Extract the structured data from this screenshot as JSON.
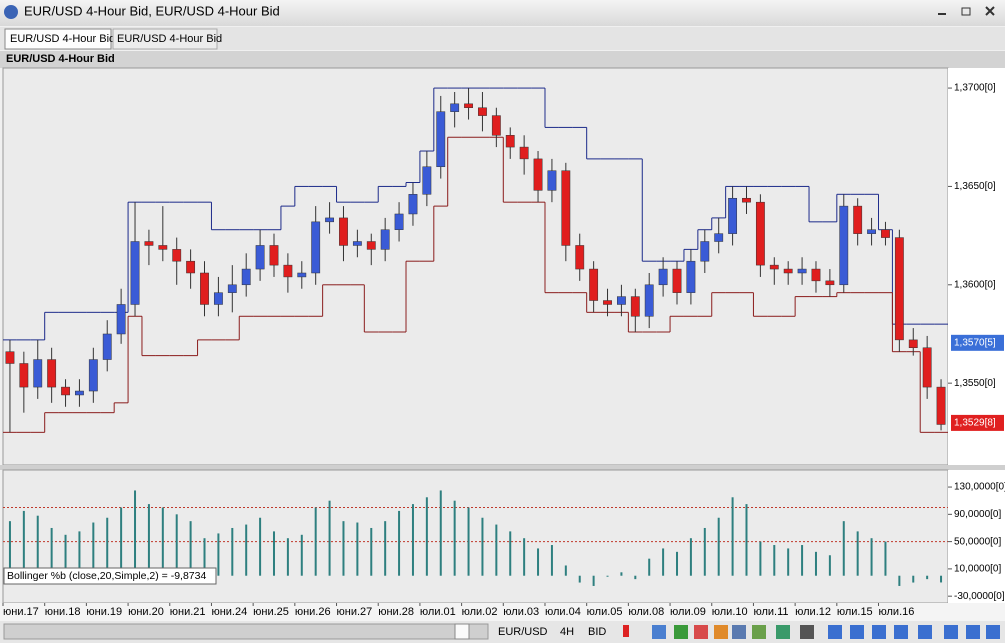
{
  "window": {
    "title": "EUR/USD 4-Hour Bid, EUR/USD 4-Hour Bid",
    "tabs": [
      "EUR/USD 4-Hour Bid",
      "EUR/USD 4-Hour Bid"
    ],
    "panel_title": "EUR/USD 4-Hour Bid",
    "toolbar": {
      "symbol": "EUR/USD",
      "period": "4H",
      "side": "BID"
    }
  },
  "chart_data": [
    {
      "type": "candlestick",
      "categories": [
        null,
        "юни.17",
        null,
        null,
        "юни.18",
        null,
        null,
        "юни.19",
        null,
        null,
        "юни.20",
        null,
        null,
        "юни.21",
        null,
        null,
        "юни.24",
        null,
        null,
        "юни.25",
        null,
        null,
        "юни.26",
        null,
        null,
        "юни.27",
        null,
        null,
        "юни.28",
        null,
        null,
        "юли.01",
        null,
        null,
        "юли.02",
        null,
        null,
        "юли.03",
        null,
        null,
        "юли.04",
        null,
        null,
        "юли.05",
        null,
        null,
        "юли.08",
        null,
        null,
        "юли.09",
        null,
        null,
        "юли.10",
        null,
        null,
        "юли.11",
        null,
        null,
        "юли.12",
        null,
        null,
        "юли.15",
        null,
        null,
        "юли.16",
        null,
        null,
        null
      ],
      "open": [
        1.3566,
        1.356,
        1.3548,
        1.3562,
        1.3548,
        1.3544,
        1.3546,
        1.3562,
        1.3575,
        1.359,
        1.3622,
        1.362,
        1.3618,
        1.3612,
        1.3606,
        1.359,
        1.3596,
        1.36,
        1.3608,
        1.362,
        1.361,
        1.3604,
        1.3606,
        1.3632,
        1.3634,
        1.362,
        1.3622,
        1.3618,
        1.3628,
        1.3636,
        1.3646,
        1.366,
        1.3688,
        1.3692,
        1.369,
        1.3686,
        1.3676,
        1.367,
        1.3664,
        1.3648,
        1.3658,
        1.362,
        1.3608,
        1.3592,
        1.359,
        1.3594,
        1.3584,
        1.36,
        1.3608,
        1.3596,
        1.3612,
        1.3622,
        1.3626,
        1.3644,
        1.3642,
        1.361,
        1.3608,
        1.3606,
        1.3608,
        1.3602,
        1.36,
        1.364,
        1.3626,
        1.3628,
        1.3624,
        1.3572,
        1.3568,
        1.3548
      ],
      "high": [
        1.3572,
        1.3566,
        1.3572,
        1.3568,
        1.3552,
        1.3552,
        1.3568,
        1.3582,
        1.3598,
        1.3642,
        1.3628,
        1.364,
        1.3624,
        1.3618,
        1.3612,
        1.3604,
        1.361,
        1.3616,
        1.3628,
        1.3626,
        1.3616,
        1.3612,
        1.364,
        1.3642,
        1.364,
        1.3628,
        1.3626,
        1.3634,
        1.3642,
        1.3652,
        1.3668,
        1.3696,
        1.3698,
        1.37,
        1.3698,
        1.369,
        1.368,
        1.3676,
        1.3668,
        1.3664,
        1.3662,
        1.3626,
        1.3612,
        1.3598,
        1.36,
        1.3598,
        1.3606,
        1.3614,
        1.3612,
        1.3618,
        1.3628,
        1.3634,
        1.365,
        1.365,
        1.3646,
        1.3614,
        1.3612,
        1.3614,
        1.3612,
        1.3608,
        1.3646,
        1.3644,
        1.3634,
        1.3632,
        1.3628,
        1.3578,
        1.3574,
        1.3552
      ],
      "low": [
        1.3525,
        1.3535,
        1.3542,
        1.354,
        1.3538,
        1.3538,
        1.354,
        1.3556,
        1.357,
        1.3584,
        1.361,
        1.3612,
        1.36,
        1.3598,
        1.3584,
        1.3584,
        1.3586,
        1.3594,
        1.3602,
        1.3604,
        1.3596,
        1.3598,
        1.36,
        1.3626,
        1.3612,
        1.3614,
        1.361,
        1.3612,
        1.3622,
        1.363,
        1.364,
        1.3654,
        1.368,
        1.3684,
        1.3678,
        1.367,
        1.3664,
        1.3656,
        1.3642,
        1.3642,
        1.3612,
        1.3602,
        1.3586,
        1.3584,
        1.3584,
        1.3576,
        1.3578,
        1.3594,
        1.359,
        1.359,
        1.3606,
        1.3616,
        1.362,
        1.3636,
        1.3604,
        1.36,
        1.36,
        1.36,
        1.3596,
        1.3594,
        1.3596,
        1.362,
        1.362,
        1.362,
        1.3566,
        1.3564,
        1.3542,
        1.3526
      ],
      "close": [
        1.356,
        1.3548,
        1.3562,
        1.3548,
        1.3544,
        1.3546,
        1.3562,
        1.3575,
        1.359,
        1.3622,
        1.362,
        1.3618,
        1.3612,
        1.3606,
        1.359,
        1.3596,
        1.36,
        1.3608,
        1.362,
        1.361,
        1.3604,
        1.3606,
        1.3632,
        1.3634,
        1.362,
        1.3622,
        1.3618,
        1.3628,
        1.3636,
        1.3646,
        1.366,
        1.3688,
        1.3692,
        1.369,
        1.3686,
        1.3676,
        1.367,
        1.3664,
        1.3648,
        1.3658,
        1.362,
        1.3608,
        1.3592,
        1.359,
        1.3594,
        1.3584,
        1.36,
        1.3608,
        1.3596,
        1.3612,
        1.3622,
        1.3626,
        1.3644,
        1.3642,
        1.361,
        1.3608,
        1.3606,
        1.3608,
        1.3602,
        1.36,
        1.364,
        1.3626,
        1.3628,
        1.3624,
        1.3572,
        1.3568,
        1.3548,
        1.3529
      ],
      "up_color": "#3a5bd6",
      "down_color": "#e01e1e",
      "series": [
        {
          "color": "#1c2a8a",
          "values": [
            1.3572,
            1.3572,
            1.3572,
            1.3586,
            1.3586,
            1.3586,
            1.3586,
            1.3586,
            1.3586,
            1.3642,
            1.3642,
            1.3642,
            1.3642,
            1.3642,
            1.3642,
            1.3628,
            1.3628,
            1.3628,
            1.3628,
            1.3628,
            1.364,
            1.365,
            1.365,
            1.365,
            1.3642,
            1.3642,
            1.3642,
            1.365,
            1.365,
            1.3652,
            1.3668,
            1.37,
            1.37,
            1.37,
            1.37,
            1.37,
            1.37,
            1.37,
            1.37,
            1.368,
            1.368,
            1.368,
            1.3664,
            1.3664,
            1.3664,
            1.3664,
            1.3612,
            1.3612,
            1.3612,
            1.3618,
            1.3628,
            1.3634,
            1.365,
            1.365,
            1.365,
            1.365,
            1.365,
            1.365,
            1.3632,
            1.3632,
            1.3646,
            1.3646,
            1.3646,
            1.3628,
            1.358,
            1.358,
            1.358,
            1.358
          ]
        },
        {
          "color": "#8a1c1c",
          "values": [
            1.3525,
            1.3525,
            1.3525,
            1.3535,
            1.3535,
            1.3535,
            1.3535,
            1.3535,
            1.354,
            1.3584,
            1.3564,
            1.3564,
            1.3564,
            1.3564,
            1.3572,
            1.3572,
            1.3572,
            1.3584,
            1.3584,
            1.3584,
            1.3584,
            1.3584,
            1.3584,
            1.36,
            1.36,
            1.36,
            1.3576,
            1.3576,
            1.3576,
            1.3612,
            1.3612,
            1.364,
            1.3675,
            1.3675,
            1.3675,
            1.3675,
            1.3642,
            1.3642,
            1.3642,
            1.3596,
            1.3596,
            1.3596,
            1.3586,
            1.3586,
            1.3586,
            1.3576,
            1.3576,
            1.3576,
            1.3584,
            1.3584,
            1.3584,
            1.3596,
            1.3596,
            1.3596,
            1.3584,
            1.3584,
            1.3584,
            1.3594,
            1.3594,
            1.3594,
            1.3596,
            1.3596,
            1.3596,
            1.3596,
            1.3566,
            1.3566,
            1.3525,
            1.3525
          ]
        }
      ],
      "ylim": [
        1.35084,
        1.37102
      ],
      "yticks": [
        {
          "value": 1.355,
          "label": "1,3550[0]"
        },
        {
          "value": 1.36,
          "label": "1,3600[0]"
        },
        {
          "value": 1.365,
          "label": "1,3650[0]"
        },
        {
          "value": 1.37,
          "label": "1,3700[0]"
        }
      ],
      "price_labels": [
        {
          "value": 1.35705,
          "label": "1,3570[5]",
          "color": "#3a6fd8"
        },
        {
          "value": 1.35298,
          "label": "1,3529[8]",
          "color": "#e02020"
        }
      ]
    },
    {
      "type": "bar",
      "title": "Bollinger %b (close,20,Simple,2) = -9,8734",
      "color": "#2e7f7f",
      "values": [
        80,
        95,
        88,
        70,
        60,
        65,
        78,
        85,
        100,
        125,
        105,
        100,
        90,
        80,
        55,
        62,
        70,
        75,
        85,
        65,
        55,
        60,
        100,
        110,
        80,
        78,
        70,
        80,
        95,
        105,
        115,
        125,
        110,
        100,
        85,
        75,
        65,
        55,
        40,
        45,
        15,
        -10,
        -15,
        0,
        5,
        -5,
        25,
        40,
        35,
        55,
        70,
        85,
        115,
        105,
        50,
        45,
        40,
        45,
        35,
        30,
        80,
        65,
        55,
        50,
        -15,
        -10,
        -5,
        -9.8734
      ],
      "levels": [
        100,
        50
      ],
      "level_color": "#c0392b",
      "ylim": [
        -40,
        155
      ],
      "yticks": [
        {
          "value": -30,
          "label": "-30,0000[0]"
        },
        {
          "value": 10,
          "label": "10,0000[0]"
        },
        {
          "value": 50,
          "label": "50,0000[0]"
        },
        {
          "value": 90,
          "label": "90,0000[0]"
        },
        {
          "value": 130,
          "label": "130,0000[0]"
        }
      ]
    }
  ]
}
